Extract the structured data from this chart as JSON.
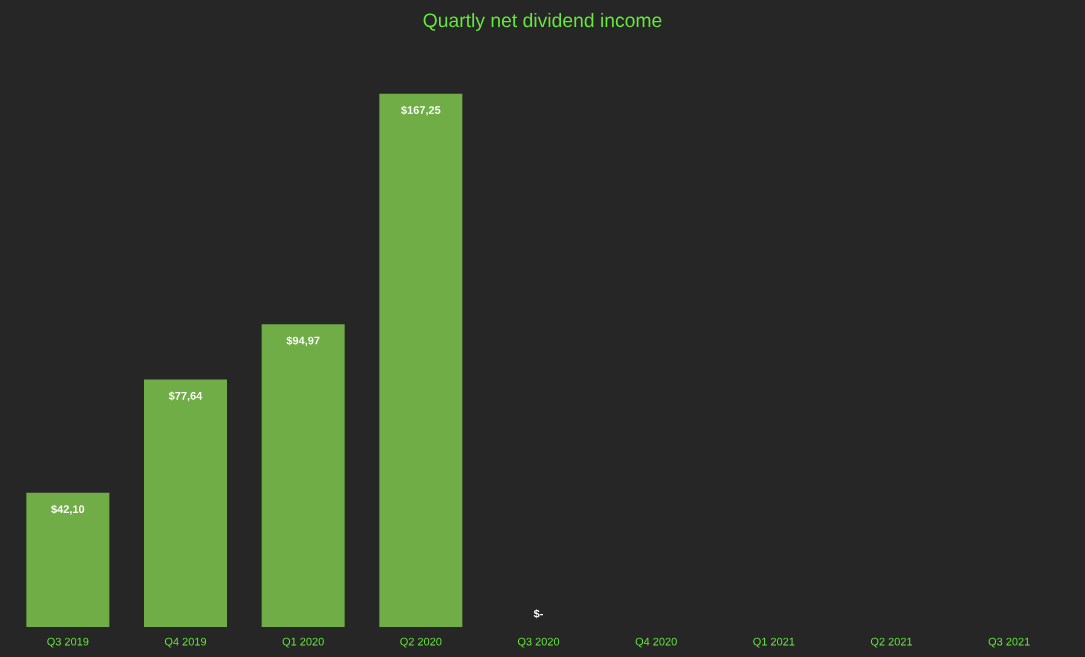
{
  "chart_data": {
    "type": "bar",
    "title": "Quartly net dividend income",
    "categories": [
      "Q3 2019",
      "Q4 2019",
      "Q1 2020",
      "Q2 2020",
      "Q3 2020",
      "Q4 2020",
      "Q1 2021",
      "Q2 2021",
      "Q3 2021"
    ],
    "values": [
      42.1,
      77.64,
      94.97,
      167.25,
      0,
      null,
      null,
      null,
      null
    ],
    "value_labels": [
      "$42,10",
      "$77,64",
      "$94,97",
      "$167,25",
      "$-",
      null,
      null,
      null,
      null
    ],
    "color": "#70ad47"
  }
}
